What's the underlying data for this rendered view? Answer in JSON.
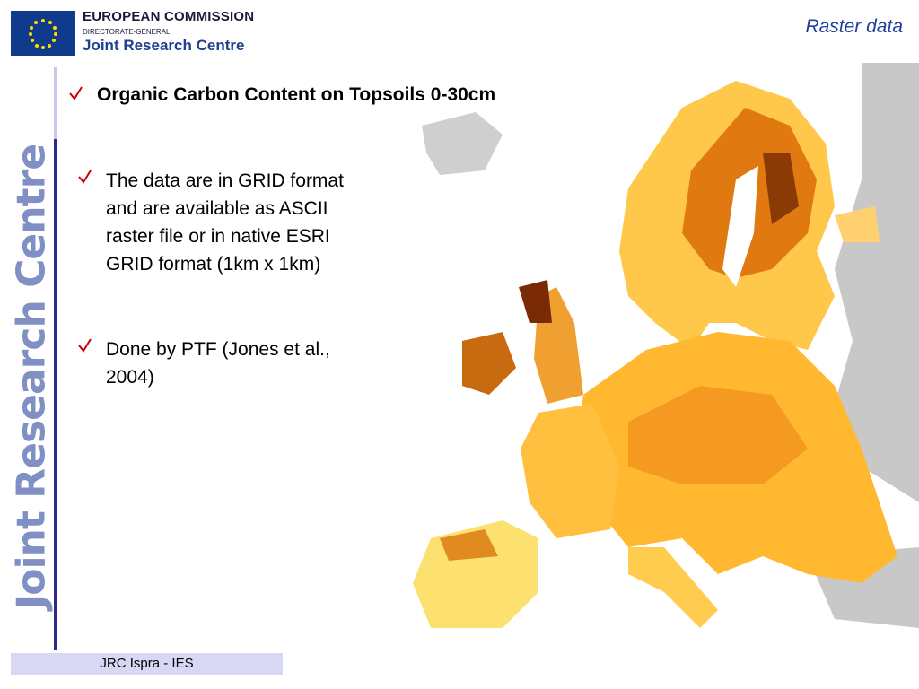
{
  "header": {
    "org": "EUROPEAN COMMISSION",
    "dg": "DIRECTORATE-GENERAL",
    "centre": "Joint Research Centre",
    "section": "Raster data"
  },
  "title": "Organic Carbon Content on Topsoils 0-30cm",
  "bullets": [
    "The data are in GRID format and are available as ASCII raster file or in native ESRI GRID format (1km x 1km)",
    "Done by PTF (Jones et al., 2004)"
  ],
  "side_label": "Joint Research Centre",
  "footer": "JRC Ispra - IES"
}
